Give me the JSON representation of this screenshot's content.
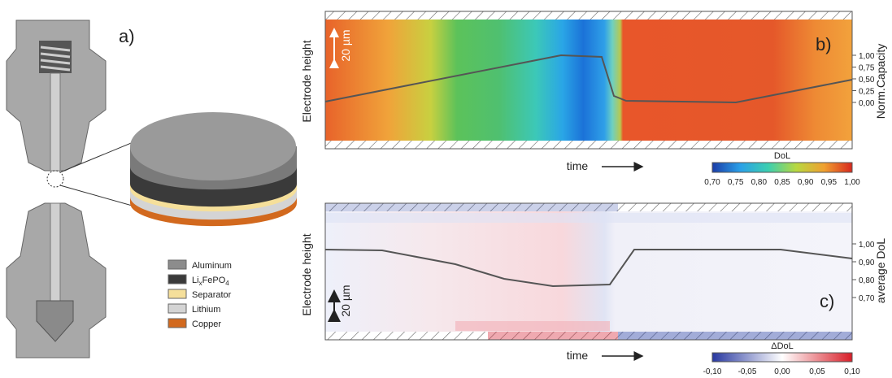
{
  "panel_a": {
    "label": "a)",
    "legend": [
      {
        "label": "Aluminum",
        "color": "#8c8c8c"
      },
      {
        "label": [
          "Li",
          "x",
          "FePO",
          "4"
        ],
        "color": "#3a3a3a"
      },
      {
        "label": "Separator",
        "color": "#f5df9a"
      },
      {
        "label": "Lithium",
        "color": "#d4d4d4"
      },
      {
        "label": "Copper",
        "color": "#d2691e"
      }
    ]
  },
  "panel_b": {
    "label": "b)",
    "y_label": "Electrode height",
    "scale_label": "20 µm",
    "x_label": "time",
    "right_axis_label": "Norm.Capacity",
    "right_ticks": [
      "1,00",
      "0,75",
      "0,50",
      "0,25",
      "0,00"
    ],
    "colorbar_title": "DoL",
    "colorbar_ticks": [
      "0,70",
      "0,75",
      "0,80",
      "0,85",
      "0,90",
      "0,95",
      "1,00"
    ]
  },
  "panel_c": {
    "label": "c)",
    "y_label": "Electrode height",
    "scale_label": "20 µm",
    "x_label": "time",
    "right_axis_label": "average DoL",
    "right_ticks": [
      "1,00",
      "0,90",
      "0,80",
      "0,70"
    ],
    "colorbar_title": "ΔDoL",
    "colorbar_ticks": [
      "-0,10",
      "-0,05",
      "0,00",
      "0,05",
      "0,10"
    ]
  }
}
